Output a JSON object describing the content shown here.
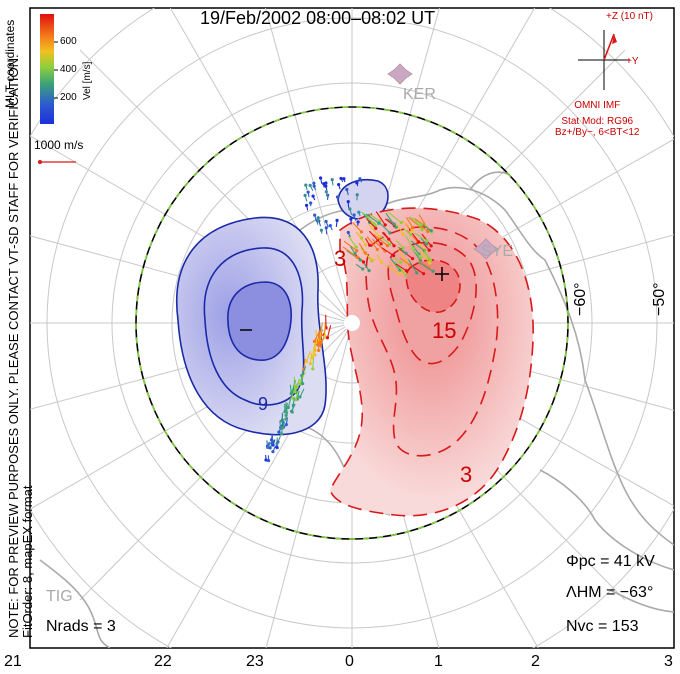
{
  "title": "19/Feb/2002 08:00–08:02 UT",
  "sidebar_note": "NOTE: FOR PREVIEW PURPOSES ONLY. PLEASE CONTACT VT-SD STAFF FOR VERIFICATION.",
  "fit_note": "FitOrder: 8, mapEX format",
  "coordinates_label": "MLT coordinates",
  "colorbar": {
    "unit": "Vel [m/s]",
    "ticks": [
      "600",
      "400",
      "200"
    ]
  },
  "reference_vector": "1000 m/s",
  "imf": {
    "z_label": "+Z (10 nT)",
    "y_label": "+Y",
    "source": "OMNI IMF",
    "model": "Stat Mod: RG96",
    "condition": "Bz+/By−, 6<BT<12"
  },
  "stats": {
    "phi_pc": "Φpc  =  41  kV",
    "lambda_hm": "ΛHM  =  −63°",
    "n_vc": "Nvc  =  153",
    "n_rads": "Nrads  =  3"
  },
  "mlt_ticks": [
    "21",
    "22",
    "23",
    "0",
    "1",
    "2",
    "3"
  ],
  "lat_labels": [
    "−60°",
    "−50°"
  ],
  "sites": [
    "KER",
    "SYE",
    "TIG"
  ],
  "contour_labels": [
    "3",
    "15",
    "3",
    "9"
  ],
  "extrema": {
    "min": "−",
    "max": "+"
  },
  "colors": {
    "positive": "#d81a1a",
    "negative": "#1a2aa8",
    "hmb": "#7fd03a"
  }
}
